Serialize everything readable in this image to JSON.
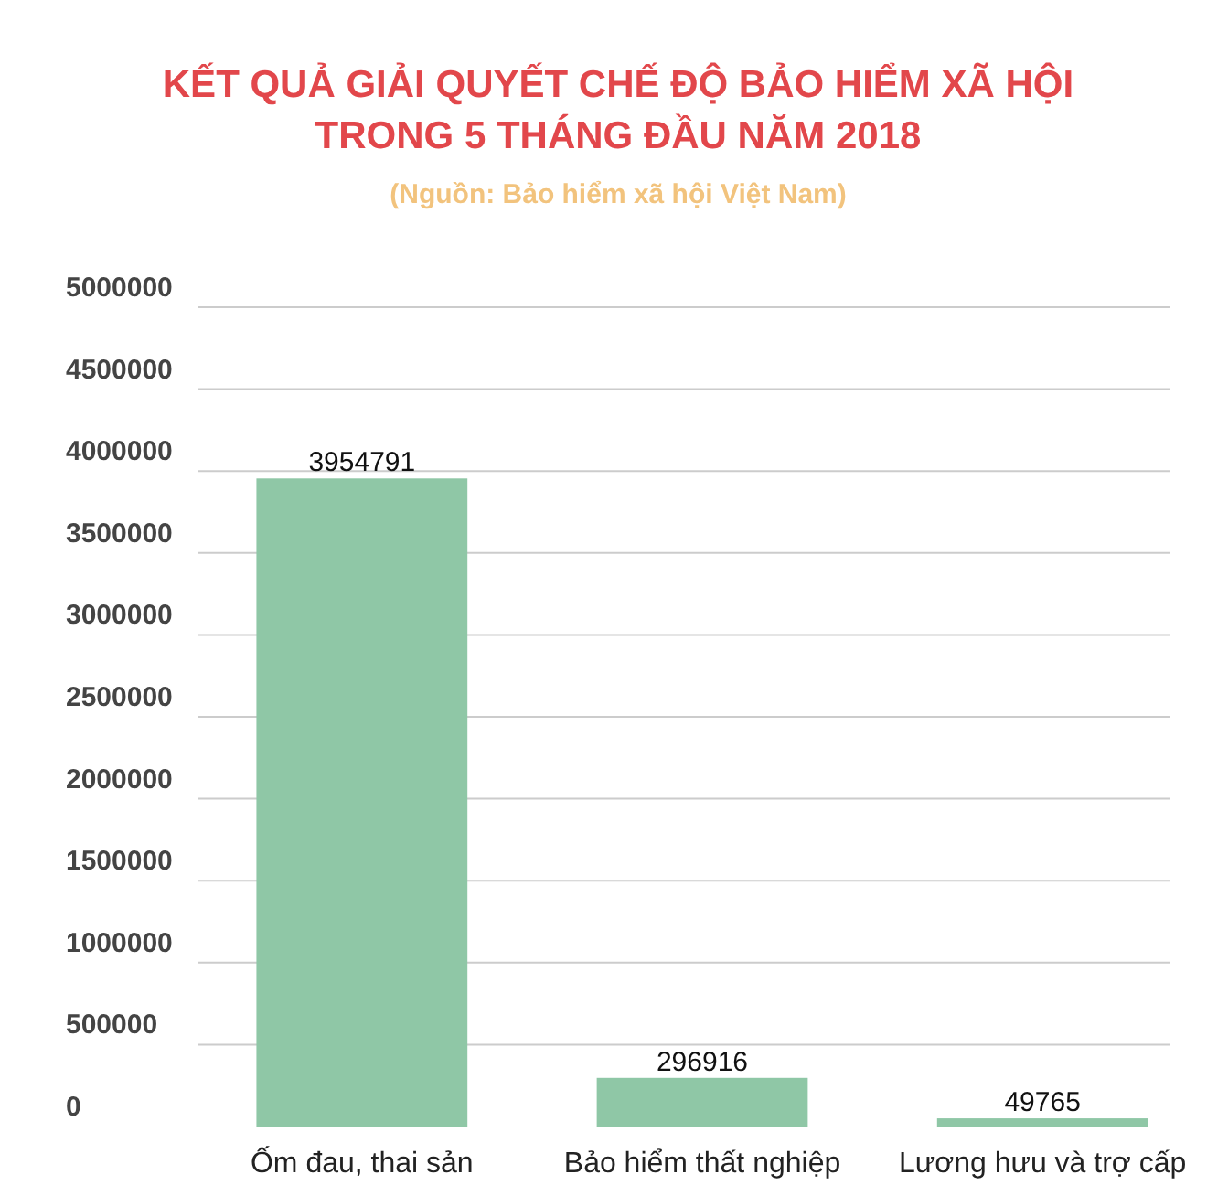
{
  "chart_data": {
    "type": "bar",
    "title": "KẾT QUẢ GIẢI QUYẾT CHẾ ĐỘ BẢO HIỂM XÃ HỘI\nTRONG 5 THÁNG ĐẦU NĂM 2018",
    "subtitle": "(Nguồn: Bảo hiểm xã hội Việt Nam)",
    "categories": [
      "Ốm đau, thai sản",
      "Bảo hiểm thất nghiệp",
      "Lương hưu và trợ cấp"
    ],
    "values": [
      3954791,
      296916,
      49765
    ],
    "color": "#8fc7a6",
    "ylim": [
      0,
      5000000
    ],
    "yticks": [
      0,
      500000,
      1000000,
      1500000,
      2000000,
      2500000,
      3000000,
      3500000,
      4000000,
      4500000,
      5000000
    ],
    "grid": "y",
    "data_labels": true
  }
}
